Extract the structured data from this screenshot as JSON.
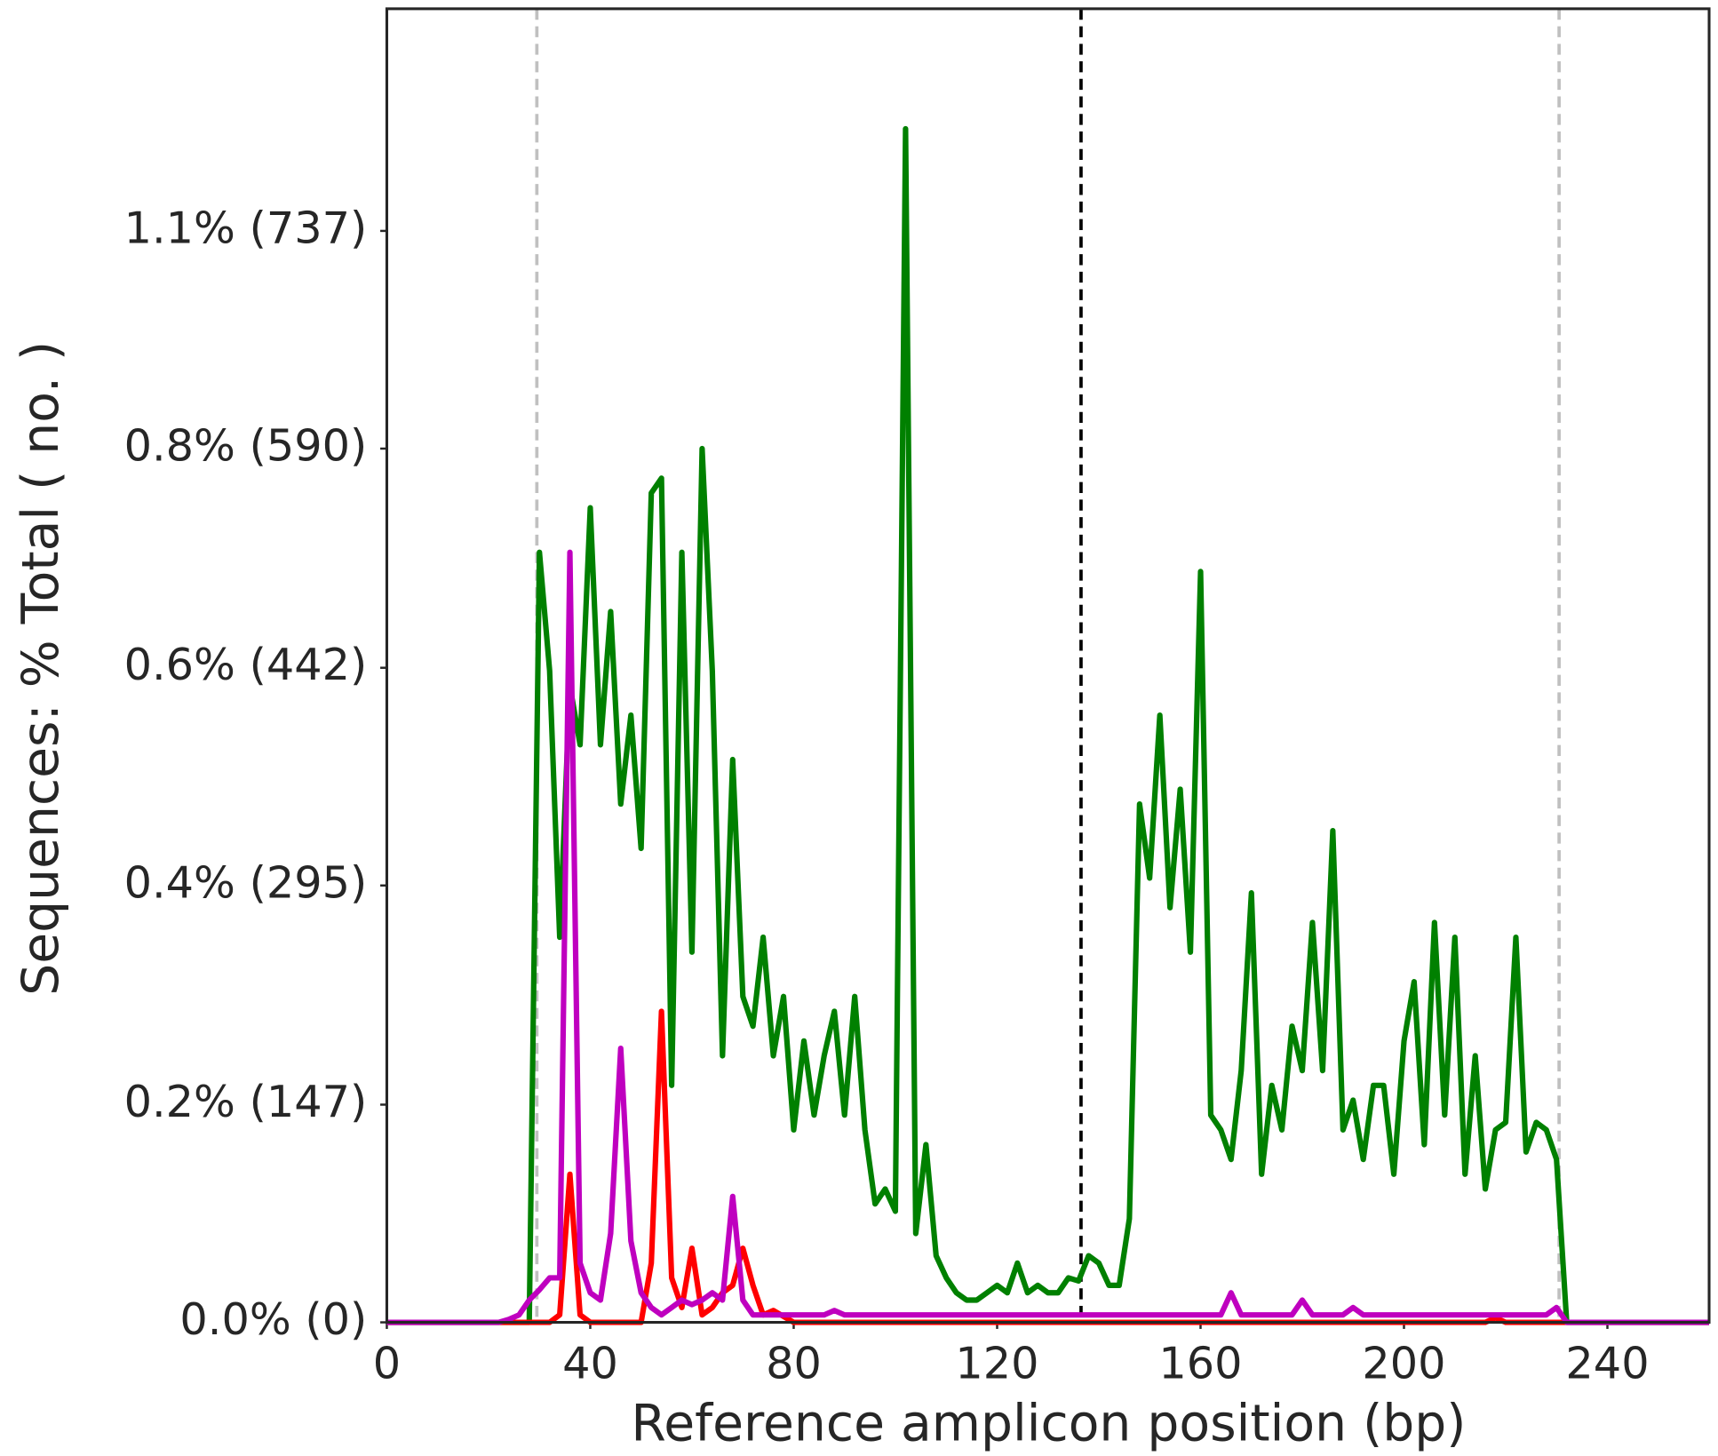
{
  "chart_data": {
    "type": "line",
    "x_label": "Reference amplicon position (bp)",
    "y_label": "Sequences: % Total ( no. )",
    "x": [
      0,
      2,
      4,
      6,
      8,
      10,
      12,
      14,
      16,
      18,
      20,
      22,
      24,
      26,
      28,
      30,
      32,
      34,
      36,
      38,
      40,
      42,
      44,
      46,
      48,
      50,
      52,
      54,
      56,
      58,
      60,
      62,
      64,
      66,
      68,
      70,
      72,
      74,
      76,
      78,
      80,
      82,
      84,
      86,
      88,
      90,
      92,
      94,
      96,
      98,
      100,
      102,
      104,
      106,
      108,
      110,
      112,
      114,
      116,
      118,
      120,
      122,
      124,
      126,
      128,
      130,
      132,
      134,
      136,
      138,
      140,
      142,
      144,
      146,
      148,
      150,
      152,
      154,
      156,
      158,
      160,
      162,
      164,
      166,
      168,
      170,
      172,
      174,
      176,
      178,
      180,
      182,
      184,
      186,
      188,
      190,
      192,
      194,
      196,
      198,
      200,
      202,
      204,
      206,
      208,
      210,
      212,
      214,
      216,
      218,
      220,
      222,
      224,
      226,
      228,
      230,
      232,
      234,
      236,
      238,
      240,
      242,
      244,
      246,
      248,
      250,
      252,
      254,
      256,
      258,
      260
    ],
    "series": [
      {
        "color": "#008000",
        "values": [
          0,
          0,
          0,
          0,
          0,
          0,
          0,
          0,
          0,
          0,
          0,
          0,
          0,
          0,
          0,
          520,
          440,
          260,
          430,
          390,
          550,
          390,
          480,
          350,
          410,
          320,
          560,
          570,
          160,
          520,
          250,
          590,
          440,
          180,
          380,
          220,
          200,
          260,
          180,
          220,
          130,
          190,
          140,
          180,
          210,
          140,
          220,
          130,
          80,
          90,
          75,
          806,
          60,
          120,
          45,
          30,
          20,
          15,
          15,
          20,
          25,
          20,
          40,
          20,
          25,
          20,
          20,
          30,
          28,
          45,
          40,
          25,
          25,
          70,
          350,
          300,
          410,
          280,
          360,
          250,
          507,
          140,
          130,
          110,
          170,
          290,
          100,
          160,
          130,
          200,
          170,
          270,
          170,
          332,
          130,
          150,
          110,
          160,
          160,
          100,
          190,
          230,
          120,
          270,
          140,
          260,
          100,
          180,
          90,
          130,
          135,
          260,
          115,
          135,
          130,
          110,
          0,
          0,
          0,
          0,
          0,
          0,
          0,
          0,
          0,
          0,
          0,
          0,
          0,
          0,
          0
        ]
      },
      {
        "color": "#ff0000",
        "values": [
          0,
          0,
          0,
          0,
          0,
          0,
          0,
          0,
          0,
          0,
          0,
          0,
          0,
          0,
          0,
          0,
          0,
          5,
          100,
          5,
          0,
          0,
          0,
          0,
          0,
          0,
          40,
          210,
          30,
          10,
          50,
          5,
          10,
          20,
          25,
          50,
          25,
          5,
          8,
          4,
          0,
          0,
          0,
          0,
          0,
          0,
          0,
          0,
          0,
          0,
          0,
          0,
          0,
          0,
          0,
          0,
          0,
          0,
          0,
          0,
          0,
          0,
          0,
          0,
          0,
          0,
          0,
          0,
          0,
          0,
          0,
          0,
          0,
          0,
          0,
          0,
          0,
          0,
          0,
          0,
          0,
          0,
          0,
          0,
          0,
          0,
          0,
          0,
          0,
          0,
          0,
          0,
          0,
          0,
          0,
          0,
          0,
          0,
          0,
          0,
          0,
          0,
          0,
          0,
          0,
          0,
          0,
          0,
          0,
          3,
          0,
          0,
          0,
          0,
          0,
          0,
          0,
          0,
          0,
          0,
          0,
          0,
          0,
          0,
          0,
          0,
          0,
          0,
          0,
          0,
          0
        ]
      },
      {
        "color": "#bf00bf",
        "values": [
          0,
          0,
          0,
          0,
          0,
          0,
          0,
          0,
          0,
          0,
          0,
          0,
          2,
          5,
          15,
          22,
          30,
          30,
          520,
          40,
          20,
          15,
          60,
          185,
          55,
          20,
          10,
          5,
          10,
          15,
          12,
          15,
          20,
          15,
          85,
          15,
          5,
          5,
          5,
          5,
          5,
          5,
          5,
          5,
          8,
          5,
          5,
          5,
          5,
          5,
          5,
          5,
          5,
          5,
          5,
          5,
          5,
          5,
          5,
          5,
          5,
          5,
          5,
          5,
          5,
          5,
          5,
          5,
          5,
          5,
          5,
          5,
          5,
          5,
          5,
          5,
          5,
          5,
          5,
          5,
          5,
          5,
          5,
          20,
          5,
          5,
          5,
          5,
          5,
          5,
          15,
          5,
          5,
          5,
          5,
          10,
          5,
          5,
          5,
          5,
          5,
          5,
          5,
          5,
          5,
          5,
          5,
          5,
          5,
          5,
          5,
          5,
          5,
          5,
          5,
          10,
          0,
          0,
          0,
          0,
          0,
          0,
          0,
          0,
          0,
          0,
          0,
          0,
          0,
          0,
          0
        ]
      }
    ],
    "vlines": [
      {
        "value": 29.5,
        "color": "#c0c0c0"
      },
      {
        "value": 136.5,
        "color": "#000000"
      },
      {
        "value": 230.5,
        "color": "#c0c0c0"
      }
    ],
    "xlim": [
      0,
      260
    ],
    "xticks": [
      0,
      40,
      80,
      120,
      160,
      200,
      240
    ],
    "ylim": [
      0,
      887
    ],
    "yticks": [
      {
        "value": 0,
        "label": "0.0% (0)"
      },
      {
        "value": 147,
        "label": "0.2% (147)"
      },
      {
        "value": 295,
        "label": "0.4% (295)"
      },
      {
        "value": 442,
        "label": "0.6% (442)"
      },
      {
        "value": 590,
        "label": "0.8% (590)"
      },
      {
        "value": 737,
        "label": "1.1% (737)"
      }
    ],
    "grid": false
  }
}
